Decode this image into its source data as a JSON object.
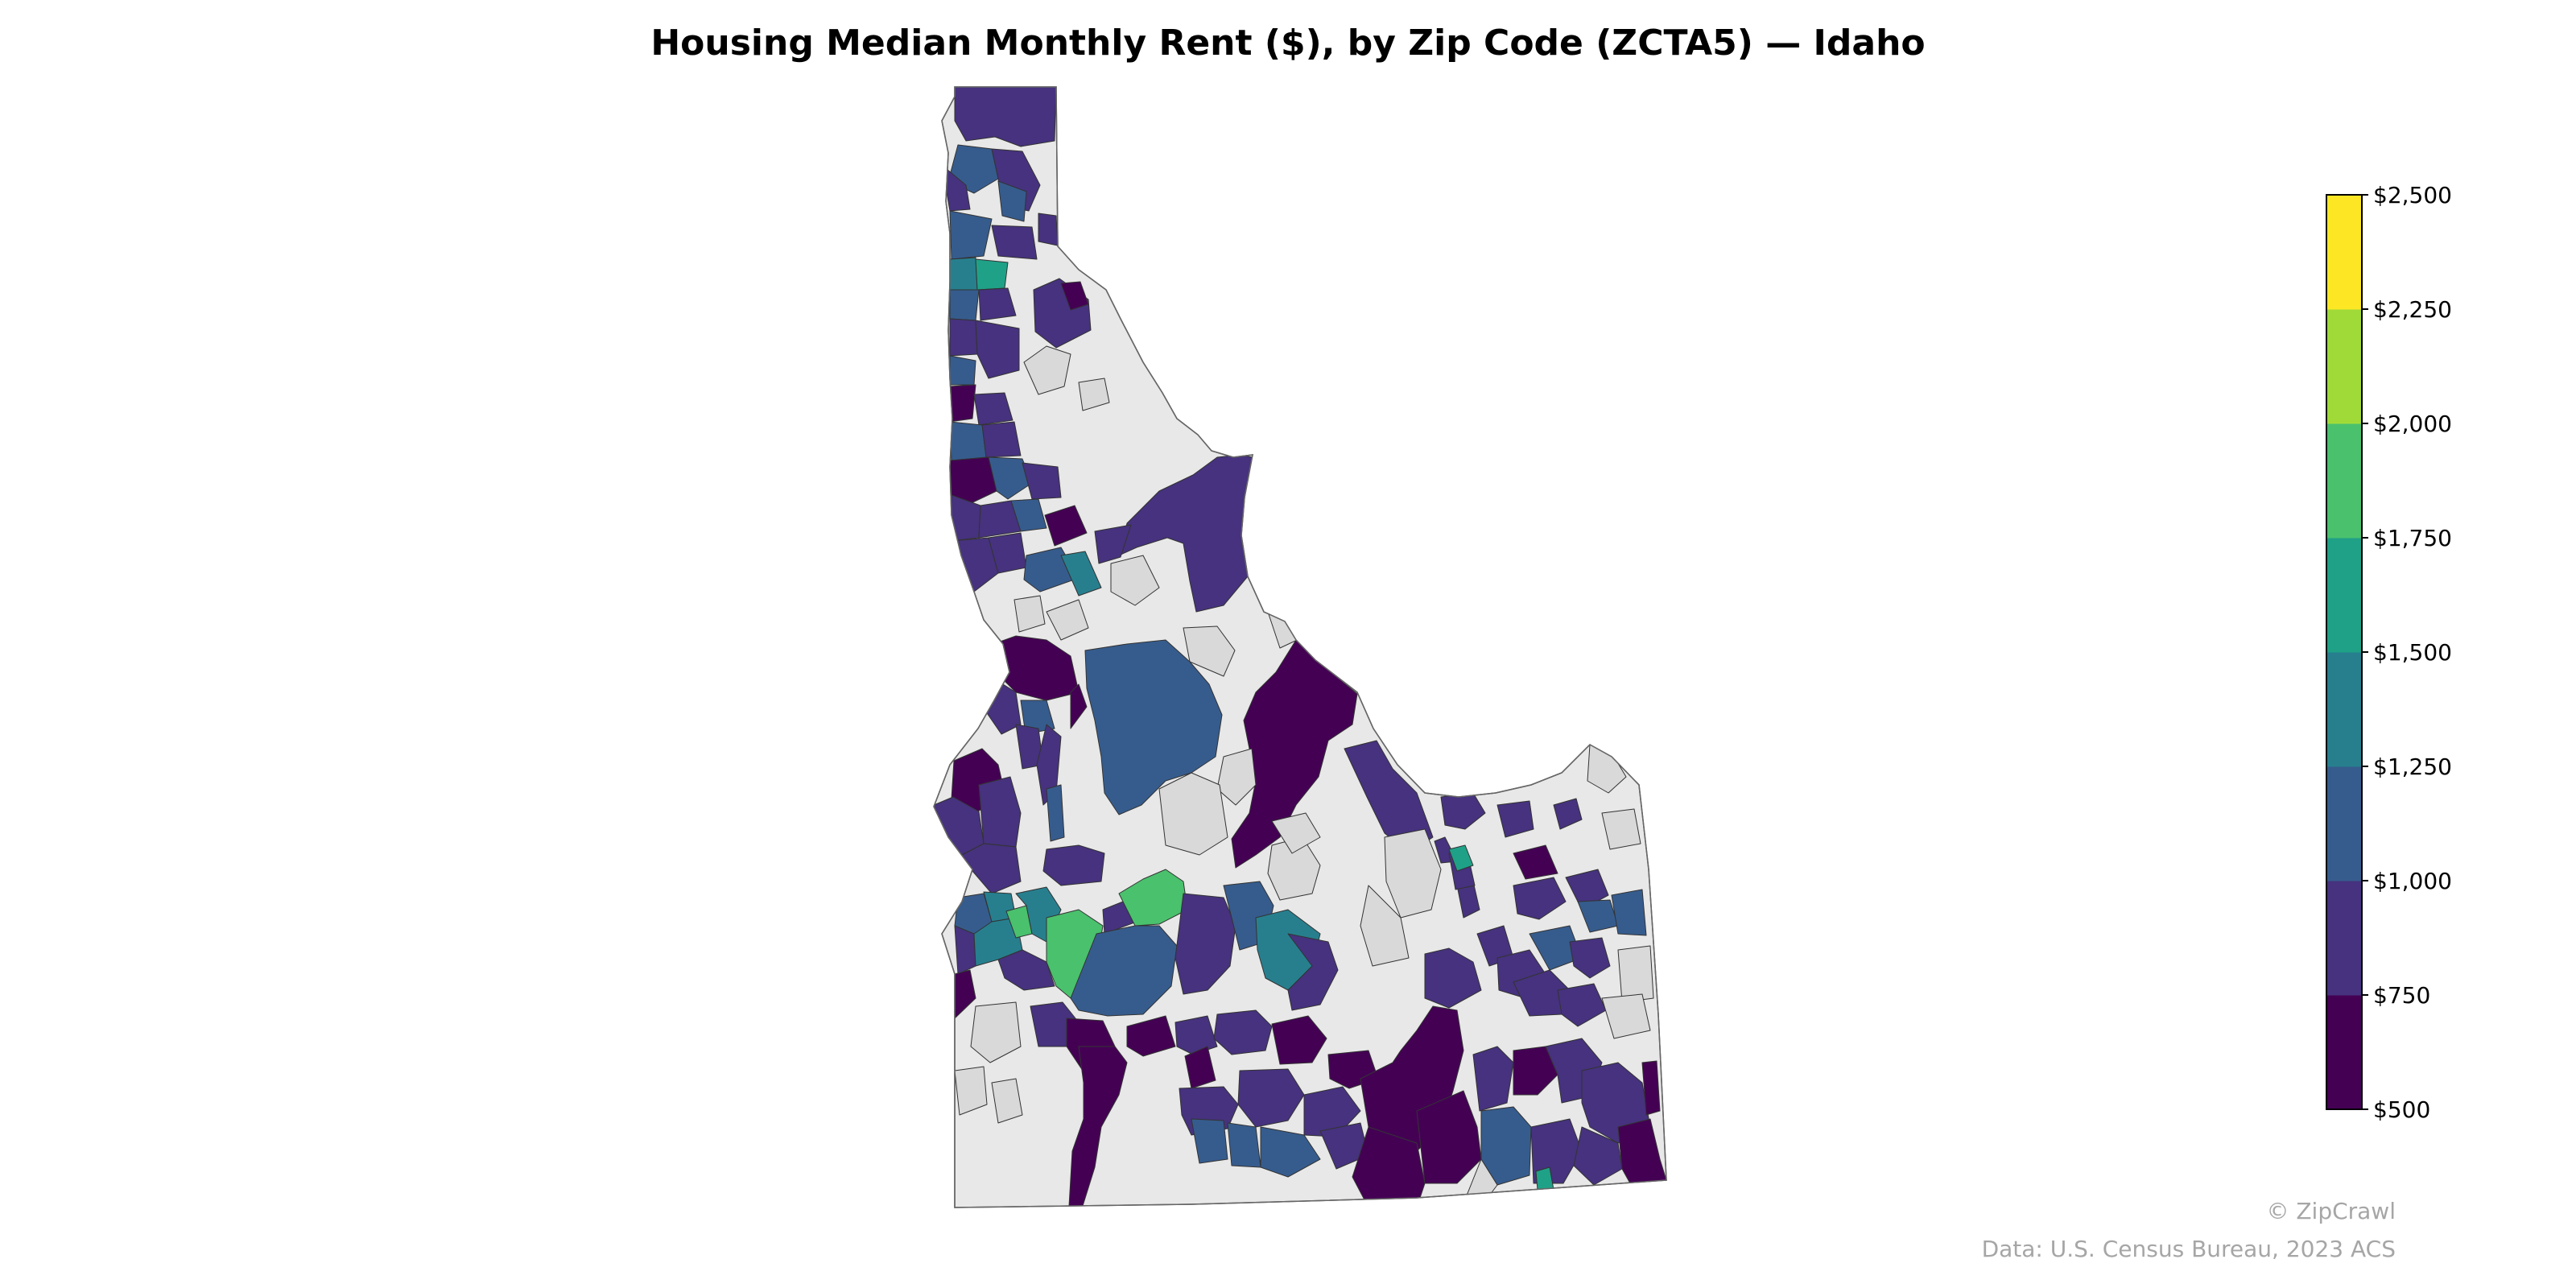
{
  "title": "Housing Median Monthly Rent ($), by Zip Code (ZCTA5) — Idaho",
  "colorbar": {
    "ticks": [
      "$2,500",
      "$2,250",
      "$2,000",
      "$1,750",
      "$1,500",
      "$1,250",
      "$1,000",
      "$750",
      "$500"
    ],
    "bins": [
      {
        "range": "$500–$750",
        "color": "#440154"
      },
      {
        "range": "$750–$1,000",
        "color": "#46327e"
      },
      {
        "range": "$1,000–$1,250",
        "color": "#365c8d"
      },
      {
        "range": "$1,250–$1,500",
        "color": "#277f8e"
      },
      {
        "range": "$1,500–$1,750",
        "color": "#1fa187"
      },
      {
        "range": "$1,750–$2,000",
        "color": "#4ac16d"
      },
      {
        "range": "$2,000–$2,250",
        "color": "#a0da39"
      },
      {
        "range": "$2,250–$2,500",
        "color": "#fde725"
      }
    ],
    "no_data_colors": [
      "#d9d9d9",
      "#e8e8e8"
    ]
  },
  "credit": "© ZipCrawl",
  "source": "Data: U.S. Census Bureau, 2023 ACS"
}
